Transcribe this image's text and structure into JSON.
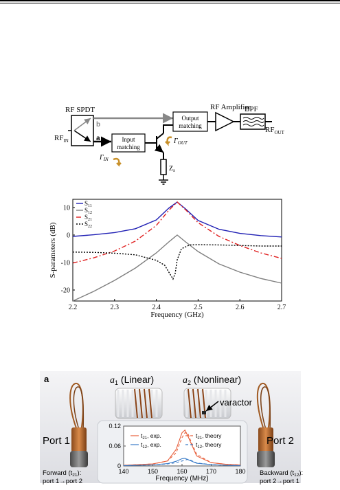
{
  "circuit": {
    "rf_spdt": "RF SPDT",
    "rf_in": "RF",
    "rf_in_sub": "IN",
    "port_a": "a",
    "port_b": "b",
    "input_matching_1": "Input",
    "input_matching_2": "matching",
    "output_matching_1": "Output",
    "output_matching_2": "matching",
    "rf_amplifier": "RF Amplifier",
    "bpf": "BPF",
    "rf_out": "RF",
    "rf_out_sub": "OUT",
    "gamma_in": "Γ",
    "gamma_in_sub": "IN",
    "gamma_out": "Γ",
    "gamma_out_sub": "OUT",
    "zs": "Z",
    "zs_sub": "s"
  },
  "chart_data": [
    {
      "type": "line",
      "xlabel": "Frequency (GHz)",
      "ylabel": "S-parameters (dB)",
      "xlim": [
        2.2,
        2.7
      ],
      "ylim": [
        -24,
        13
      ],
      "xticks": [
        "2.2",
        "2.3",
        "2.4",
        "2.5",
        "2.6",
        "2.7"
      ],
      "yticks": [
        "10",
        "0",
        "-10",
        "-20"
      ],
      "series": [
        {
          "name": "S11",
          "sub": "11",
          "color": "#1f1fb4",
          "dash": "",
          "x": [
            2.2,
            2.25,
            2.3,
            2.35,
            2.4,
            2.43,
            2.45,
            2.47,
            2.5,
            2.55,
            2.6,
            2.65,
            2.7
          ],
          "y": [
            -0.5,
            0.1,
            0.9,
            2.3,
            5.5,
            9.8,
            12,
            9.5,
            5.3,
            2.1,
            0.6,
            -0.2,
            -0.7
          ]
        },
        {
          "name": "S12",
          "sub": "12",
          "color": "#7f7f7f",
          "dash": "",
          "x": [
            2.2,
            2.25,
            2.3,
            2.35,
            2.4,
            2.43,
            2.45,
            2.47,
            2.5,
            2.55,
            2.6,
            2.65,
            2.7
          ],
          "y": [
            -24,
            -20.5,
            -16.5,
            -12,
            -6.5,
            -2.5,
            0,
            -2.5,
            -6,
            -10.5,
            -13.5,
            -15.8,
            -17.5
          ]
        },
        {
          "name": "S21",
          "sub": "21",
          "color": "#e02020",
          "dash": "7,3,2,3",
          "x": [
            2.2,
            2.25,
            2.3,
            2.35,
            2.4,
            2.43,
            2.45,
            2.47,
            2.5,
            2.55,
            2.6,
            2.65,
            2.7
          ],
          "y": [
            -10.2,
            -8.3,
            -5.8,
            -2.2,
            3.5,
            9,
            12,
            9.2,
            4.5,
            -0.5,
            -3.8,
            -6.5,
            -8.5
          ]
        },
        {
          "name": "S22",
          "sub": "22",
          "color": "#000000",
          "dash": "2,2",
          "x": [
            2.2,
            2.25,
            2.3,
            2.35,
            2.4,
            2.42,
            2.43,
            2.44,
            2.445,
            2.45,
            2.46,
            2.48,
            2.5,
            2.55,
            2.6,
            2.65,
            2.7
          ],
          "y": [
            -6.2,
            -6.3,
            -6.6,
            -7.2,
            -9.2,
            -11,
            -13.5,
            -16,
            -14,
            -9,
            -5,
            -3.6,
            -3.5,
            -3.6,
            -3.8,
            -4,
            -4
          ]
        }
      ]
    },
    {
      "type": "line",
      "xlabel": "Frequency (MHz)",
      "ylabel": "",
      "xlim": [
        140,
        180
      ],
      "ylim": [
        0,
        0.12
      ],
      "xticks": [
        "140",
        "150",
        "160",
        "170",
        "180"
      ],
      "yticks": [
        "0.12",
        "0.06",
        "0"
      ],
      "series": [
        {
          "name": "t21, exp.",
          "label": "t",
          "sub": "21",
          "rest": ", exp.",
          "color": "#e8603c",
          "dash": "",
          "x": [
            140,
            150,
            155,
            158,
            160,
            161,
            162,
            165,
            170,
            175,
            180
          ],
          "y": [
            0.002,
            0.006,
            0.015,
            0.05,
            0.1,
            0.108,
            0.09,
            0.03,
            0.01,
            0.005,
            0.003
          ]
        },
        {
          "name": "t21, theory",
          "label": "t",
          "sub": "21",
          "rest": ", theory",
          "color": "#e8603c",
          "dash": "4,3",
          "x": [
            140,
            150,
            155,
            158,
            160,
            161,
            162,
            163,
            165,
            170,
            175,
            180
          ],
          "y": [
            0.002,
            0.006,
            0.015,
            0.04,
            0.085,
            0.1,
            0.098,
            0.075,
            0.035,
            0.01,
            0.005,
            0.003
          ]
        },
        {
          "name": "t12, exp.",
          "label": "t",
          "sub": "12",
          "rest": ", exp.",
          "color": "#3a7cc8",
          "dash": "",
          "x": [
            140,
            150,
            155,
            158,
            160,
            161,
            162,
            165,
            170,
            175,
            180
          ],
          "y": [
            0.001,
            0.003,
            0.007,
            0.014,
            0.022,
            0.023,
            0.019,
            0.008,
            0.004,
            0.002,
            0.001
          ]
        },
        {
          "name": "t12, theory",
          "label": "t",
          "sub": "12",
          "rest": ", theory",
          "color": "#3a7cc8",
          "dash": "4,3",
          "x": [
            140,
            150,
            155,
            158,
            160,
            162,
            163,
            165,
            170,
            175,
            180
          ],
          "y": [
            0.001,
            0.003,
            0.006,
            0.01,
            0.015,
            0.02,
            0.017,
            0.009,
            0.004,
            0.002,
            0.001
          ]
        }
      ]
    }
  ],
  "photo": {
    "panel_label": "a",
    "a1": "a",
    "a1_sub": "1",
    "a1_rest": " (Linear)",
    "a2": "a",
    "a2_sub": "2",
    "a2_rest": " (Nonlinear)",
    "varactor": "varactor",
    "port1": "Port 1",
    "port2": "Port 2",
    "forward_1": "Forward (t",
    "forward_sub": "21",
    "forward_2": "):",
    "forward_3": "port 1→port 2",
    "backward_1": "Backward (t",
    "backward_sub": "12",
    "backward_2": "):",
    "backward_3": "port 2→port 1"
  }
}
